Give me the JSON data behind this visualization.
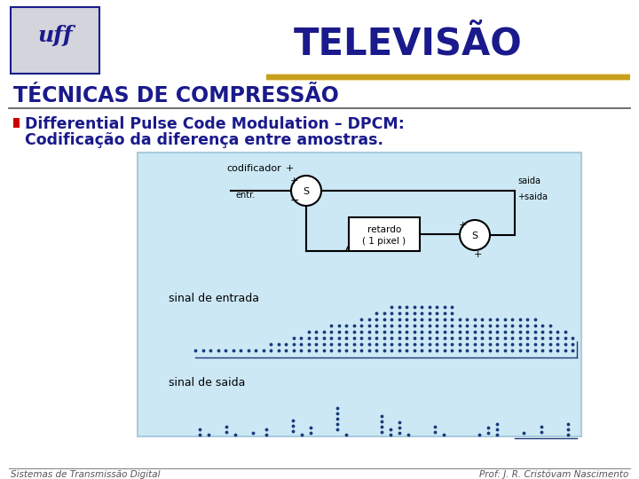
{
  "title": "TELEVISÃO",
  "section_title": "TÉCNICAS DE COMPRESSÃO",
  "bullet_line1": "Differential Pulse Code Modulation – DPCM:",
  "bullet_line2": "Codificação da diferença entre amostras.",
  "footer_left": "Sistemas de Transmissão Digital",
  "footer_right": "Prof: J. R. Cristóvam Nascimento",
  "bg_color": "#ffffff",
  "title_color": "#1a1a8c",
  "section_color": "#1a1a8c",
  "bullet_color": "#1a1a8c",
  "bullet_marker_color": "#cc0000",
  "footer_color": "#555555",
  "diagram_bg": "#cce8f5",
  "diagram_border": "#aaccdd",
  "gold_bar_color": "#c8a020",
  "gold_bar_light": "#e8cc60",
  "separator_color": "#555555",
  "logo_bg": "#d4d4dc",
  "logo_border": "#1a1a8c",
  "logo_color": "#1a1a8c"
}
